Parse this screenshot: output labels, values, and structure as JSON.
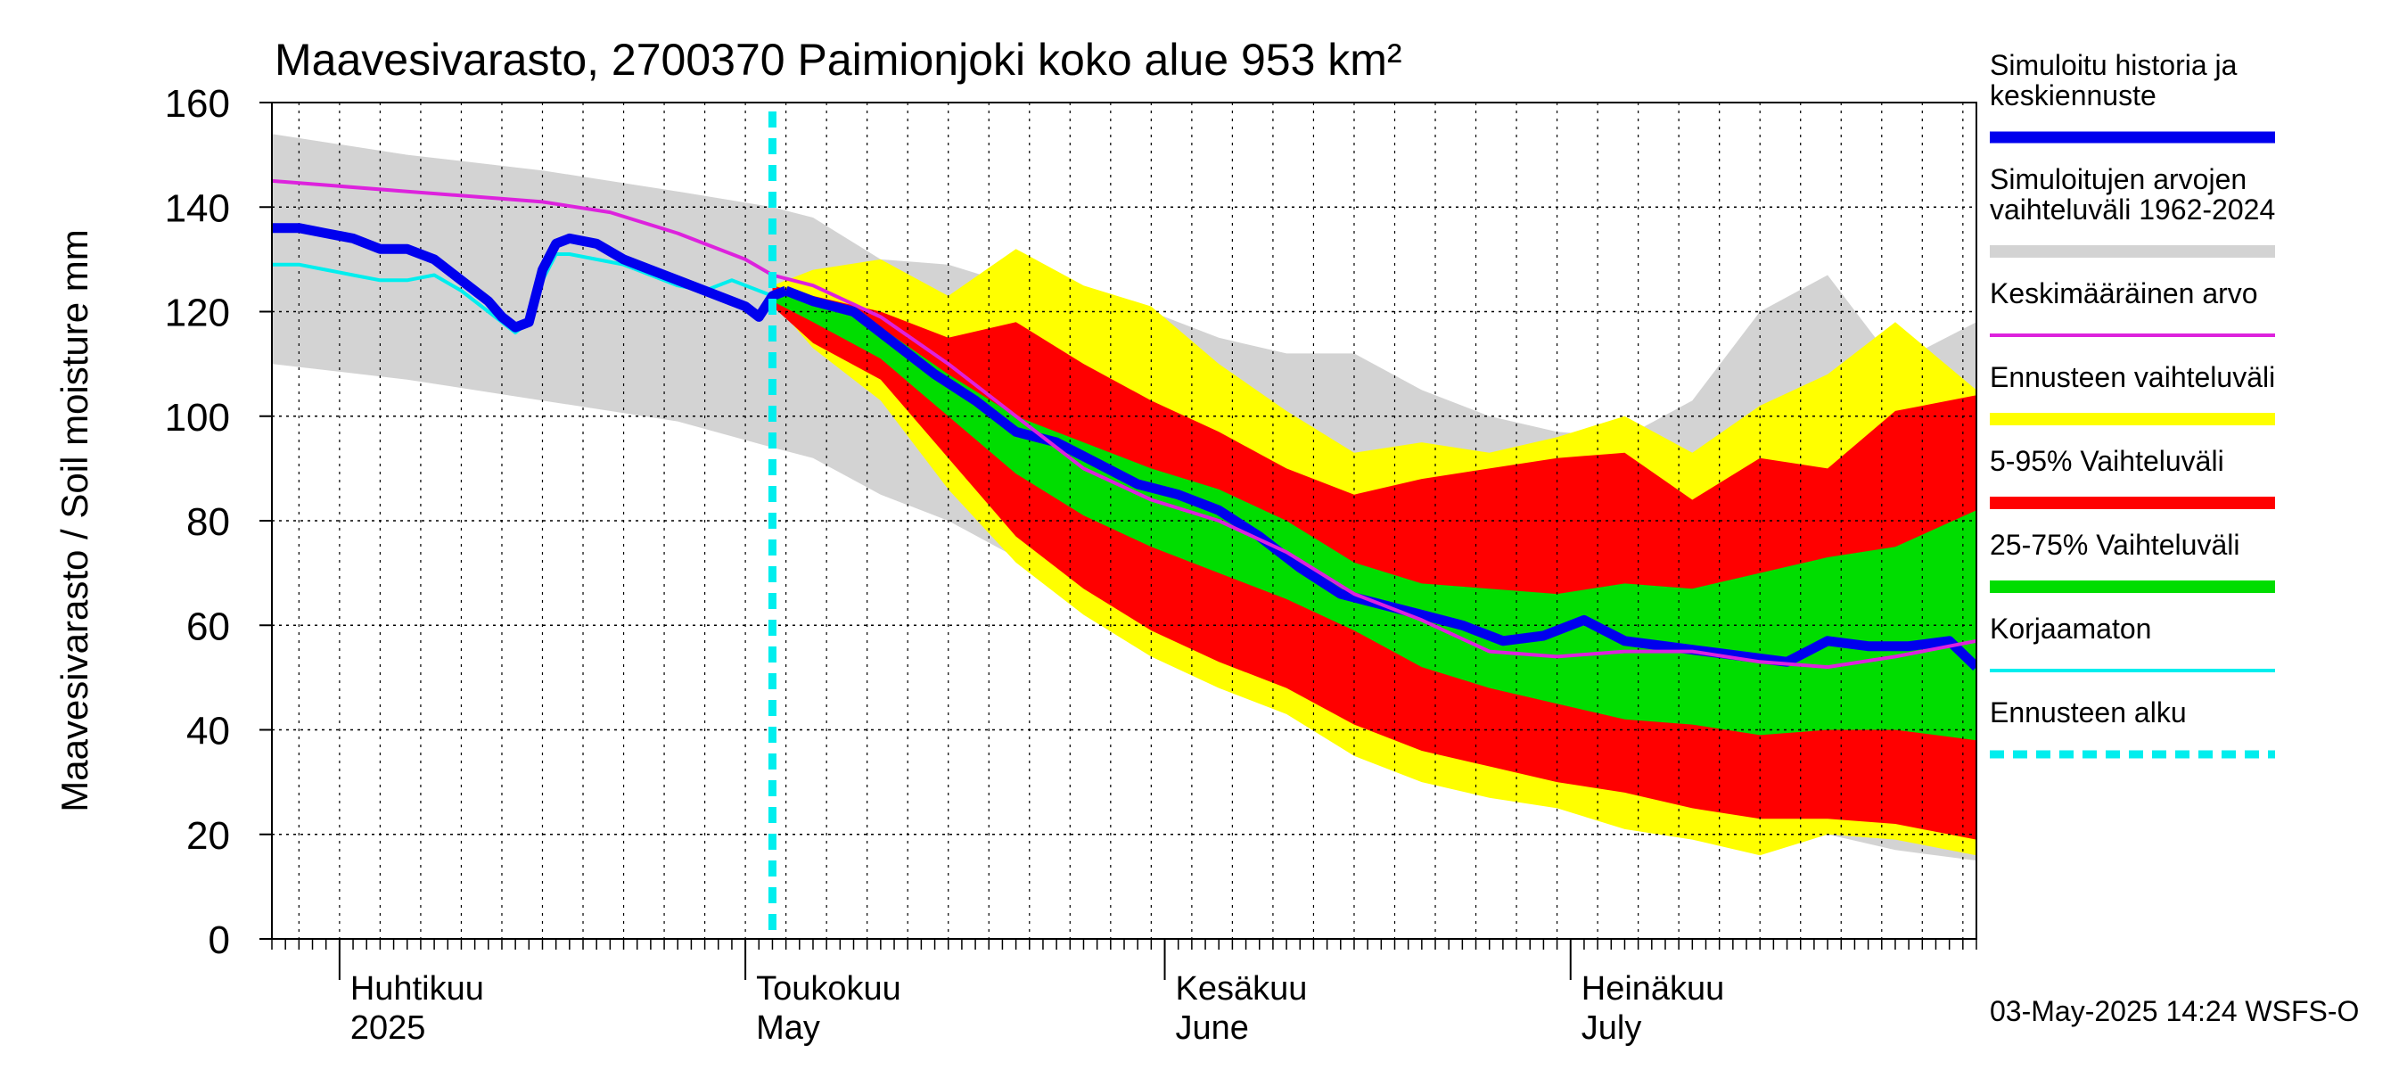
{
  "chart_data": {
    "type": "area",
    "title": "Maavesivarasto, 2700370 Paimionjoki koko alue 953 km²",
    "ylabel": "Maavesivarasto / Soil moisture   mm",
    "ylim": [
      0,
      160
    ],
    "yticks": [
      0,
      20,
      40,
      60,
      80,
      100,
      120,
      140,
      160
    ],
    "x_range": [
      "2025-03-27",
      "2025-07-31"
    ],
    "months": [
      {
        "fi": "Huhtikuu",
        "en": "2025",
        "start": "2025-04-01"
      },
      {
        "fi": "Toukokuu",
        "en": "May",
        "start": "2025-05-01"
      },
      {
        "fi": "Kesäkuu",
        "en": "June",
        "start": "2025-06-01"
      },
      {
        "fi": "Heinäkuu",
        "en": "July",
        "start": "2025-07-01"
      }
    ],
    "forecast_start": "2025-05-03",
    "footer": "03-May-2025 14:24 WSFS-O",
    "legend": [
      {
        "label": "Simuloitu historia ja keskiennuste",
        "lines": [
          "Simuloitu historia ja",
          "keskiennuste"
        ],
        "color": "#0000ee",
        "style": "thick"
      },
      {
        "label": "Simuloitujen arvojen vaihteluväli 1962-2024",
        "lines": [
          "Simuloitujen arvojen",
          "vaihteluväli 1962-2024"
        ],
        "color": "#d3d3d3",
        "style": "band"
      },
      {
        "label": "Keskimääräinen arvo",
        "lines": [
          "Keskimääräinen arvo"
        ],
        "color": "#dd22dd",
        "style": "line"
      },
      {
        "label": "Ennusteen vaihteluväli",
        "lines": [
          "Ennusteen vaihteluväli"
        ],
        "color": "#ffff00",
        "style": "band"
      },
      {
        "label": "5-95% Vaihteluväli",
        "lines": [
          "5-95% Vaihteluväli"
        ],
        "color": "#ff0000",
        "style": "band"
      },
      {
        "label": "25-75% Vaihteluväli",
        "lines": [
          "25-75% Vaihteluväli"
        ],
        "color": "#00dd00",
        "style": "band"
      },
      {
        "label": "Korjaamaton",
        "lines": [
          "Korjaamaton"
        ],
        "color": "#00eeee",
        "style": "line"
      },
      {
        "label": "Ennusteen alku",
        "lines": [
          "Ennusteen alku"
        ],
        "color": "#00eeee",
        "style": "dashed"
      }
    ],
    "series": {
      "hist_range": {
        "x": [
          0,
          10,
          20,
          30,
          37,
          40,
          45,
          50,
          55,
          60,
          65,
          70,
          75,
          80,
          85,
          90,
          95,
          100,
          105,
          110,
          115,
          120,
          126
        ],
        "high": [
          154,
          150,
          147,
          143,
          140,
          138,
          130,
          129,
          125,
          122,
          120,
          115,
          112,
          112,
          105,
          100,
          97,
          96,
          103,
          120,
          127,
          110,
          118
        ],
        "low": [
          110,
          107,
          103,
          99,
          94,
          92,
          85,
          80,
          73,
          64,
          58,
          55,
          49,
          44,
          40,
          36,
          33,
          29,
          24,
          21,
          20,
          17,
          15
        ]
      },
      "ens_range": {
        "x": [
          37,
          40,
          45,
          50,
          55,
          60,
          65,
          70,
          75,
          80,
          85,
          90,
          95,
          100,
          105,
          110,
          115,
          120,
          126
        ],
        "high": [
          125,
          128,
          130,
          123,
          132,
          125,
          121,
          110,
          101,
          93,
          95,
          93,
          96,
          100,
          93,
          102,
          108,
          118,
          105
        ],
        "low": [
          122,
          113,
          103,
          86,
          72,
          62,
          54,
          48,
          43,
          35,
          30,
          27,
          25,
          21,
          19,
          16,
          20,
          19,
          16
        ]
      },
      "p5_95": {
        "x": [
          37,
          40,
          45,
          50,
          55,
          60,
          65,
          70,
          75,
          80,
          85,
          90,
          95,
          100,
          105,
          110,
          115,
          120,
          126
        ],
        "high": [
          125,
          123,
          120,
          115,
          118,
          110,
          103,
          97,
          90,
          85,
          88,
          90,
          92,
          93,
          84,
          92,
          90,
          101,
          104
        ],
        "low": [
          121,
          114,
          107,
          92,
          77,
          67,
          59,
          53,
          48,
          41,
          36,
          33,
          30,
          28,
          25,
          23,
          23,
          22,
          19
        ]
      },
      "p25_75": {
        "x": [
          37,
          40,
          45,
          50,
          55,
          60,
          65,
          70,
          75,
          80,
          85,
          90,
          95,
          100,
          105,
          110,
          115,
          120,
          126
        ],
        "high": [
          124,
          122,
          117,
          108,
          100,
          95,
          90,
          86,
          80,
          72,
          68,
          67,
          66,
          68,
          67,
          70,
          73,
          75,
          82
        ],
        "low": [
          122,
          118,
          111,
          100,
          89,
          81,
          75,
          70,
          65,
          59,
          52,
          48,
          45,
          42,
          41,
          39,
          40,
          40,
          38
        ]
      },
      "mean_line": {
        "x": [
          0,
          5,
          10,
          15,
          20,
          25,
          30,
          35,
          37,
          40,
          45,
          50,
          55,
          60,
          65,
          70,
          75,
          80,
          85,
          90,
          95,
          100,
          105,
          110,
          115,
          120,
          126
        ],
        "y": [
          145,
          144,
          143,
          142,
          141,
          139,
          135,
          130,
          127,
          125,
          119,
          110,
          100,
          90,
          84,
          80,
          74,
          66,
          61,
          55,
          54,
          55,
          55,
          53,
          52,
          54,
          57
        ]
      },
      "sim_history": {
        "x": [
          0,
          2,
          4,
          6,
          8,
          10,
          12,
          14,
          16,
          17,
          18,
          19,
          20,
          21,
          22,
          24,
          26,
          28,
          30,
          32,
          34,
          35,
          36,
          37,
          38
        ],
        "y": [
          136,
          136,
          135,
          134,
          132,
          132,
          130,
          126,
          122,
          119,
          117,
          118,
          128,
          133,
          134,
          133,
          130,
          128,
          126,
          124,
          122,
          121,
          119,
          123,
          124
        ]
      },
      "uncorrected": {
        "x": [
          0,
          2,
          4,
          6,
          8,
          10,
          12,
          14,
          16,
          17,
          18,
          19,
          20,
          21,
          22,
          24,
          26,
          28,
          30,
          32,
          34,
          36,
          37,
          38
        ],
        "y": [
          129,
          129,
          128,
          127,
          126,
          126,
          127,
          124,
          120,
          118,
          116,
          118,
          126,
          131,
          131,
          130,
          129,
          127,
          125,
          124,
          126,
          124,
          123,
          124
        ]
      },
      "forecast_median": {
        "x": [
          38,
          40,
          43,
          46,
          49,
          52,
          55,
          58,
          61,
          64,
          67,
          70,
          73,
          76,
          79,
          82,
          85,
          88,
          91,
          94,
          97,
          100,
          103,
          106,
          109,
          112,
          115,
          118,
          121,
          124,
          126
        ],
        "y": [
          124,
          122,
          120,
          114,
          108,
          103,
          97,
          95,
          91,
          87,
          85,
          82,
          77,
          71,
          66,
          64,
          62,
          60,
          57,
          58,
          61,
          57,
          56,
          55,
          54,
          53,
          57,
          56,
          56,
          57,
          52
        ]
      }
    }
  }
}
